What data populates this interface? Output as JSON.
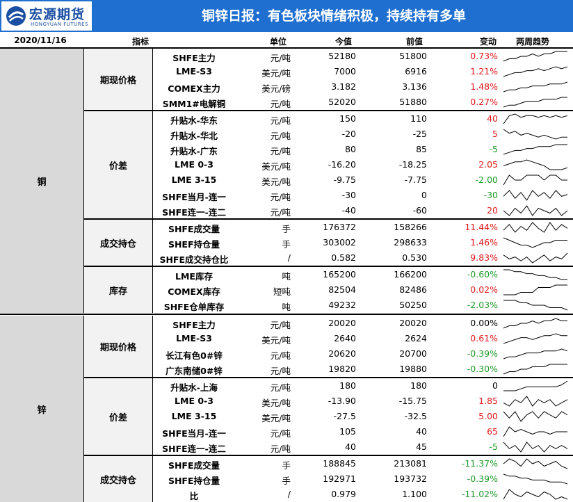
{
  "brand": {
    "name_cn": "宏源期货",
    "name_en": "HONGYUAN FUTURES"
  },
  "title": "铜锌日报：有色板块情绪积极，持续持有多单",
  "header": {
    "date": "2020/11/16",
    "indicator": "指标",
    "unit": "单位",
    "now": "今值",
    "prev": "前值",
    "change": "变动",
    "trend": "两周趋势"
  },
  "colors": {
    "banner": "#1f6fd1",
    "up": "#e0191b",
    "down": "#1f9a2a"
  },
  "sections": [
    {
      "name": "铜",
      "groups": [
        {
          "name": "期现价格",
          "rows": [
            {
              "name": "SHFE主力",
              "unit": "元/吨",
              "now": "52180",
              "prev": "51800",
              "change": "0.73%",
              "dir": "pos",
              "trend": [
                4,
                5,
                5,
                6,
                6,
                7,
                6,
                7,
                7,
                8,
                8,
                8
              ]
            },
            {
              "name": "LME-S3",
              "unit": "美元/吨",
              "now": "7000",
              "prev": "6916",
              "change": "1.21%",
              "dir": "pos",
              "trend": [
                3,
                4,
                5,
                5,
                6,
                6,
                7,
                6,
                7,
                8,
                7,
                8
              ]
            },
            {
              "name": "COMEX主力",
              "unit": "美元/磅",
              "now": "3.182",
              "prev": "3.136",
              "change": "1.48%",
              "dir": "pos",
              "trend": [
                3,
                4,
                4,
                5,
                5,
                6,
                6,
                6,
                7,
                7,
                7,
                8
              ]
            },
            {
              "name": "SMM1#电解铜",
              "unit": "元/吨",
              "now": "52020",
              "prev": "51880",
              "change": "0.27%",
              "dir": "pos",
              "trend": [
                3,
                4,
                4,
                5,
                6,
                6,
                6,
                7,
                7,
                7,
                8,
                8
              ]
            }
          ]
        },
        {
          "name": "价差",
          "rows": [
            {
              "name": "升贴水-华东",
              "unit": "元/吨",
              "now": "150",
              "prev": "110",
              "change": "40",
              "dir": "pos",
              "trend": [
                2,
                7,
                8,
                6,
                7,
                7,
                6,
                7,
                6,
                7,
                6,
                7
              ]
            },
            {
              "name": "升贴水-华北",
              "unit": "元/吨",
              "now": "-20",
              "prev": "-25",
              "change": "5",
              "dir": "pos",
              "trend": [
                8,
                6,
                7,
                5,
                6,
                5,
                4,
                5,
                4,
                3,
                4,
                4
              ]
            },
            {
              "name": "升贴水-广东",
              "unit": "元/吨",
              "now": "80",
              "prev": "85",
              "change": "-5",
              "dir": "neg",
              "trend": [
                2,
                3,
                4,
                4,
                5,
                5,
                6,
                6,
                6,
                7,
                7,
                7
              ]
            },
            {
              "name": "LME 0-3",
              "unit": "美元/吨",
              "now": "-16.20",
              "prev": "-18.25",
              "change": "2.05",
              "dir": "pos",
              "trend": [
                5,
                6,
                7,
                7,
                8,
                7,
                6,
                5,
                3,
                3,
                3,
                4
              ]
            },
            {
              "name": "LME 3-15",
              "unit": "美元/吨",
              "now": "-9.75",
              "prev": "-7.75",
              "change": "-2.00",
              "dir": "neg",
              "trend": [
                4,
                6,
                5,
                5,
                6,
                6,
                6,
                5,
                6,
                6,
                5,
                5
              ]
            },
            {
              "name": "SHFE当月-连一",
              "unit": "元/吨",
              "now": "-30",
              "prev": "0",
              "change": "-30",
              "dir": "neg",
              "trend": [
                4,
                7,
                3,
                6,
                2,
                7,
                4,
                6,
                3,
                7,
                4,
                5
              ]
            },
            {
              "name": "SHFE连一-连二",
              "unit": "元/吨",
              "now": "-40",
              "prev": "-60",
              "change": "20",
              "dir": "pos",
              "trend": [
                5,
                3,
                6,
                4,
                7,
                3,
                6,
                5,
                4,
                6,
                3,
                5
              ]
            }
          ]
        },
        {
          "name": "成交持仓",
          "rows": [
            {
              "name": "SHFE成交量",
              "unit": "手",
              "now": "176372",
              "prev": "158266",
              "change": "11.44%",
              "dir": "pos",
              "trend": [
                4,
                7,
                3,
                6,
                4,
                8,
                5,
                3,
                8,
                4,
                7,
                5
              ]
            },
            {
              "name": "SHEF持仓量",
              "unit": "手",
              "now": "303002",
              "prev": "298633",
              "change": "1.46%",
              "dir": "pos",
              "trend": [
                8,
                7,
                6,
                5,
                5,
                4,
                5,
                6,
                6,
                7,
                7,
                7
              ]
            },
            {
              "name": "SHFE成交持仓比",
              "unit": "/",
              "now": "0.582",
              "prev": "0.530",
              "change": "9.83%",
              "dir": "pos",
              "trend": [
                7,
                5,
                6,
                4,
                6,
                3,
                5,
                7,
                4,
                6,
                5,
                8
              ]
            }
          ]
        },
        {
          "name": "库存",
          "rows": [
            {
              "name": "LME库存",
              "unit": "吨",
              "now": "165200",
              "prev": "166200",
              "change": "-0.60%",
              "dir": "neg",
              "trend": [
                8,
                8,
                7,
                7,
                6,
                6,
                5,
                5,
                4,
                4,
                3,
                3
              ]
            },
            {
              "name": "COMEX库存",
              "unit": "短吨",
              "now": "82504",
              "prev": "82486",
              "change": "0.02%",
              "dir": "pos",
              "trend": [
                2,
                2,
                2,
                3,
                3,
                3,
                5,
                5,
                5,
                6,
                6,
                6
              ]
            },
            {
              "name": "SHFE仓单库存",
              "unit": "吨",
              "now": "49232",
              "prev": "50250",
              "change": "-2.03%",
              "dir": "neg",
              "trend": [
                7,
                7,
                7,
                6,
                6,
                5,
                5,
                5,
                4,
                4,
                4,
                3
              ]
            }
          ]
        }
      ]
    },
    {
      "name": "锌",
      "groups": [
        {
          "name": "期现价格",
          "rows": [
            {
              "name": "SHFE主力",
              "unit": "元/吨",
              "now": "20020",
              "prev": "20020",
              "change": "0.00%",
              "dir": "zero",
              "trend": [
                4,
                5,
                5,
                6,
                6,
                7,
                6,
                7,
                7,
                8,
                7,
                7
              ]
            },
            {
              "name": "LME-S3",
              "unit": "美元/吨",
              "now": "2640",
              "prev": "2624",
              "change": "0.61%",
              "dir": "pos",
              "trend": [
                3,
                4,
                5,
                6,
                6,
                5,
                6,
                7,
                7,
                8,
                7,
                7
              ]
            },
            {
              "name": "长江有色0#锌",
              "unit": "元/吨",
              "now": "20620",
              "prev": "20700",
              "change": "-0.39%",
              "dir": "neg",
              "trend": [
                3,
                4,
                4,
                5,
                6,
                6,
                6,
                7,
                7,
                7,
                8,
                7
              ]
            },
            {
              "name": "广东南储0#锌",
              "unit": "元/吨",
              "now": "19820",
              "prev": "19880",
              "change": "-0.30%",
              "dir": "neg",
              "trend": [
                3,
                4,
                4,
                5,
                5,
                6,
                6,
                6,
                7,
                7,
                7,
                7
              ]
            }
          ]
        },
        {
          "name": "价差",
          "rows": [
            {
              "name": "升贴水-上海",
              "unit": "元/吨",
              "now": "180",
              "prev": "180",
              "change": "0",
              "dir": "zero",
              "trend": [
                3,
                3,
                3,
                4,
                5,
                5,
                5,
                5,
                5,
                5,
                6,
                8
              ]
            },
            {
              "name": "LME 0-3",
              "unit": "美元/吨",
              "now": "-13.90",
              "prev": "-15.75",
              "change": "1.85",
              "dir": "pos",
              "trend": [
                5,
                4,
                6,
                5,
                7,
                4,
                6,
                5,
                6,
                4,
                5,
                6
              ]
            },
            {
              "name": "LME 3-15",
              "unit": "美元/吨",
              "now": "-27.5",
              "prev": "-32.5",
              "change": "5.00",
              "dir": "pos",
              "trend": [
                6,
                4,
                6,
                3,
                5,
                6,
                4,
                6,
                5,
                4,
                6,
                5
              ]
            },
            {
              "name": "SHFE当月-连一",
              "unit": "元/吨",
              "now": "105",
              "prev": "40",
              "change": "65",
              "dir": "pos",
              "trend": [
                3,
                7,
                5,
                6,
                5,
                4,
                5,
                5,
                4,
                5,
                5,
                5
              ]
            },
            {
              "name": "SHFE连一-连二",
              "unit": "元/吨",
              "now": "40",
              "prev": "45",
              "change": "-5",
              "dir": "neg",
              "trend": [
                7,
                5,
                6,
                4,
                7,
                5,
                6,
                4,
                6,
                5,
                6,
                5
              ]
            }
          ]
        },
        {
          "name": "成交持仓",
          "rows": [
            {
              "name": "SHFE成交量",
              "unit": "手",
              "now": "188845",
              "prev": "213081",
              "change": "-11.37%",
              "dir": "neg",
              "trend": [
                5,
                7,
                6,
                4,
                7,
                5,
                6,
                4,
                5,
                6,
                4,
                3
              ]
            },
            {
              "name": "SHFE持仓量",
              "unit": "手",
              "now": "192971",
              "prev": "193732",
              "change": "-0.39%",
              "dir": "neg",
              "trend": [
                8,
                7,
                7,
                6,
                6,
                5,
                5,
                5,
                4,
                4,
                4,
                3
              ]
            },
            {
              "name": "比",
              "unit": "/",
              "now": "0.979",
              "prev": "1.100",
              "change": "-11.02%",
              "dir": "neg",
              "trend": [
                3,
                7,
                5,
                4,
                6,
                5,
                4,
                6,
                5,
                3,
                4,
                3
              ]
            }
          ]
        }
      ]
    }
  ]
}
